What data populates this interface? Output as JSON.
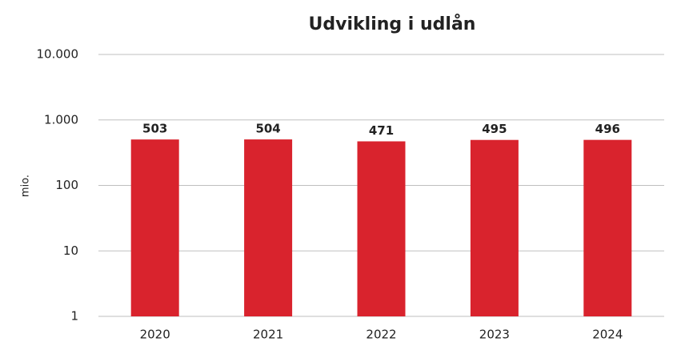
{
  "chart_data": {
    "type": "bar",
    "title": "Udvikling i udlån",
    "ylabel": "mio.",
    "categories": [
      "2020",
      "2021",
      "2022",
      "2023",
      "2024"
    ],
    "values": [
      503,
      504,
      471,
      495,
      496
    ],
    "color": "#d9232d",
    "log_scale": true,
    "ylim": [
      1,
      10000
    ],
    "yticks": [
      1,
      10,
      100,
      {
        "value": 1000,
        "label": "1.000"
      },
      {
        "value": 10000,
        "label": "10.000"
      }
    ],
    "grid": true
  }
}
